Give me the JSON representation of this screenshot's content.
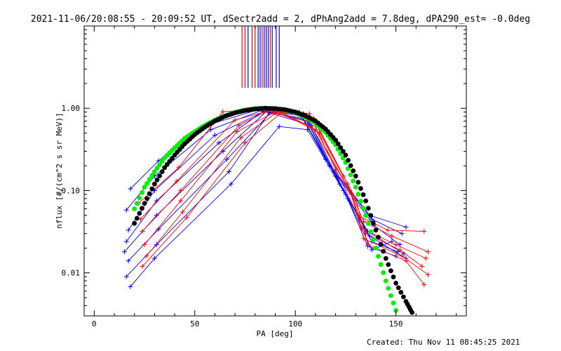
{
  "chart_data": {
    "type": "line",
    "title": "2021-11-06/20:08:55 - 20:09:52 UT, dSectr2add = 2, dPhAng2add = 7.8deg, dPA290_est= -0.0deg",
    "xlabel": "PA [deg]",
    "ylabel": "nflux [#/(cm^2 s sr MeV)]",
    "xlim": [
      -5,
      185
    ],
    "ylim": [
      0.003,
      10
    ],
    "yscale": "log",
    "x_ticks": [
      0,
      50,
      100,
      150
    ],
    "x_tick_labels": [
      "0",
      "50",
      "100",
      "150"
    ],
    "y_ticks": [
      0.01,
      0.1,
      1.0
    ],
    "y_tick_labels": [
      "0.01",
      "0.10",
      "1.00"
    ],
    "vertical_markers": [
      {
        "x": 73.5,
        "color": "#ff0000"
      },
      {
        "x": 75.0,
        "color": "#ff0000"
      },
      {
        "x": 76.5,
        "color": "#0000ff"
      },
      {
        "x": 78.5,
        "color": "#ff0000"
      },
      {
        "x": 80.0,
        "color": "#ff0000"
      },
      {
        "x": 81.5,
        "color": "#0000ff"
      },
      {
        "x": 82.5,
        "color": "#0000ff"
      },
      {
        "x": 83.5,
        "color": "#ff0000"
      },
      {
        "x": 84.5,
        "color": "#0000ff"
      },
      {
        "x": 85.5,
        "color": "#0000ff"
      },
      {
        "x": 86.5,
        "color": "#0000ff"
      },
      {
        "x": 87.5,
        "color": "#ff0000"
      },
      {
        "x": 88.5,
        "color": "#0000ff"
      },
      {
        "x": 90.5,
        "color": "#0000ff"
      },
      {
        "x": 92.0,
        "color": "#0000ff"
      }
    ],
    "series": [
      {
        "name": "fit-green",
        "color": "#00ee00",
        "style": "dots",
        "x": [
          20,
          25,
          30,
          35,
          40,
          45,
          50,
          55,
          60,
          65,
          70,
          75,
          80,
          85,
          90,
          95,
          100,
          105,
          110,
          115,
          120,
          125,
          130,
          135,
          140,
          145,
          150
        ],
        "y": [
          0.06,
          0.11,
          0.17,
          0.25,
          0.33,
          0.43,
          0.52,
          0.62,
          0.72,
          0.81,
          0.89,
          0.95,
          0.99,
          1.0,
          0.99,
          0.95,
          0.88,
          0.78,
          0.66,
          0.51,
          0.36,
          0.22,
          0.11,
          0.05,
          0.02,
          0.008,
          0.0035
        ]
      },
      {
        "name": "fit-black",
        "color": "#000000",
        "style": "dots",
        "x": [
          20,
          25,
          30,
          35,
          40,
          45,
          50,
          55,
          60,
          65,
          70,
          75,
          80,
          85,
          90,
          95,
          100,
          105,
          110,
          115,
          120,
          125,
          130,
          135,
          140,
          145,
          150,
          155,
          158
        ],
        "y": [
          0.04,
          0.07,
          0.12,
          0.19,
          0.27,
          0.37,
          0.48,
          0.59,
          0.7,
          0.8,
          0.88,
          0.94,
          0.98,
          1.0,
          0.99,
          0.96,
          0.9,
          0.81,
          0.7,
          0.56,
          0.41,
          0.27,
          0.15,
          0.075,
          0.033,
          0.015,
          0.0075,
          0.0045,
          0.0033
        ]
      },
      {
        "name": "blue-1",
        "color": "#0000ff",
        "style": "line-plus",
        "x": [
          18,
          32,
          56,
          82,
          102,
          115,
          137,
          155
        ],
        "y": [
          0.105,
          0.23,
          0.62,
          0.97,
          0.9,
          0.24,
          0.05,
          0.036
        ]
      },
      {
        "name": "blue-2",
        "color": "#0000ff",
        "style": "line-plus",
        "x": [
          16,
          30,
          58,
          85,
          104,
          117,
          138,
          153
        ],
        "y": [
          0.058,
          0.15,
          0.55,
          0.98,
          0.86,
          0.2,
          0.045,
          0.03
        ]
      },
      {
        "name": "blue-3",
        "color": "#0000ff",
        "style": "line-plus",
        "x": [
          17,
          30,
          60,
          86,
          103,
          119,
          139,
          152
        ],
        "y": [
          0.033,
          0.1,
          0.47,
          0.95,
          0.8,
          0.17,
          0.038,
          0.022
        ]
      },
      {
        "name": "blue-4",
        "color": "#0000ff",
        "style": "line-plus",
        "x": [
          16,
          31,
          62,
          84,
          104,
          120,
          136,
          154
        ],
        "y": [
          0.024,
          0.075,
          0.38,
          0.92,
          0.75,
          0.15,
          0.032,
          0.017
        ]
      },
      {
        "name": "blue-5",
        "color": "#0000ff",
        "style": "line-plus",
        "x": [
          15,
          31,
          64,
          86,
          106,
          122,
          137,
          155
        ],
        "y": [
          0.018,
          0.05,
          0.3,
          0.93,
          0.7,
          0.12,
          0.028,
          0.015
        ]
      },
      {
        "name": "blue-6",
        "color": "#0000ff",
        "style": "line-plus",
        "x": [
          17,
          32,
          66,
          88,
          107,
          124,
          138,
          151
        ],
        "y": [
          0.014,
          0.034,
          0.24,
          0.9,
          0.68,
          0.1,
          0.024,
          0.018
        ]
      },
      {
        "name": "blue-7",
        "color": "#0000ff",
        "style": "line-plus",
        "x": [
          16,
          31,
          67,
          87,
          108,
          125,
          136,
          150
        ],
        "y": [
          0.009,
          0.022,
          0.17,
          0.88,
          0.62,
          0.09,
          0.021,
          0.016
        ]
      },
      {
        "name": "blue-8",
        "color": "#0000ff",
        "style": "line-plus",
        "x": [
          18,
          30,
          68,
          92,
          106,
          126,
          138,
          148
        ],
        "y": [
          0.0068,
          0.015,
          0.12,
          0.6,
          0.55,
          0.08,
          0.019,
          0.024
        ]
      },
      {
        "name": "red-1",
        "color": "#ff0000",
        "style": "line-plus",
        "x": [
          22,
          42,
          64,
          90,
          107,
          120,
          131,
          146,
          164
        ],
        "y": [
          0.07,
          0.19,
          0.91,
          0.98,
          0.86,
          0.18,
          0.05,
          0.033,
          0.032
        ]
      },
      {
        "name": "red-2",
        "color": "#ff0000",
        "style": "line-plus",
        "x": [
          23,
          41,
          70,
          88,
          109,
          124,
          134,
          148,
          166
        ],
        "y": [
          0.045,
          0.13,
          0.72,
          0.95,
          0.76,
          0.15,
          0.042,
          0.028,
          0.018
        ]
      },
      {
        "name": "red-3",
        "color": "#ff0000",
        "style": "line-plus",
        "x": [
          24,
          43,
          72,
          86,
          110,
          126,
          133,
          150,
          165
        ],
        "y": [
          0.032,
          0.1,
          0.62,
          0.92,
          0.66,
          0.12,
          0.035,
          0.022,
          0.015
        ]
      },
      {
        "name": "red-4",
        "color": "#ff0000",
        "style": "line-plus",
        "x": [
          25,
          43,
          71,
          90,
          108,
          127,
          135,
          152,
          163
        ],
        "y": [
          0.022,
          0.075,
          0.52,
          0.9,
          0.6,
          0.1,
          0.03,
          0.019,
          0.012
        ]
      },
      {
        "name": "red-5",
        "color": "#ff0000",
        "style": "line-plus",
        "x": [
          26,
          44,
          73,
          92,
          110,
          128,
          134,
          153,
          166
        ],
        "y": [
          0.016,
          0.055,
          0.44,
          0.93,
          0.55,
          0.09,
          0.026,
          0.016,
          0.0095
        ]
      },
      {
        "name": "red-6",
        "color": "#ff0000",
        "style": "line-plus",
        "x": [
          24,
          46,
          75,
          93,
          112,
          130,
          136,
          155,
          164
        ],
        "y": [
          0.012,
          0.047,
          0.38,
          0.88,
          0.5,
          0.08,
          0.022,
          0.014,
          0.0072
        ]
      }
    ]
  }
}
